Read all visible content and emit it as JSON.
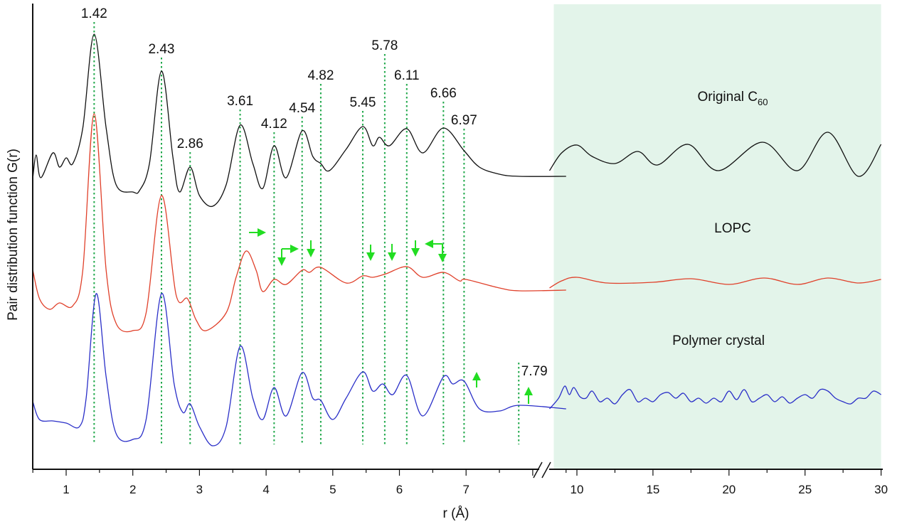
{
  "chart_data": {
    "type": "line",
    "title": "",
    "xlabel": "r (Å)",
    "ylabel": "Pair distribution function G(r)",
    "x_axis": {
      "broken": true,
      "segments": [
        {
          "range": [
            0.5,
            8.55
          ],
          "ticks": [
            1,
            2,
            3,
            4,
            5,
            6,
            7
          ]
        },
        {
          "range": [
            8.2,
            30
          ],
          "ticks": [
            10,
            15,
            20,
            25,
            30
          ]
        }
      ]
    },
    "y_ticks_shown": false,
    "grid": false,
    "shaded_region": {
      "x_range": [
        8.2,
        30
      ],
      "color": "#e3f4ea"
    },
    "peak_lines": {
      "color": "#1fa84a",
      "style": "dotted",
      "positions": [
        1.42,
        2.43,
        2.86,
        3.61,
        4.12,
        4.54,
        4.82,
        5.45,
        5.78,
        6.11,
        6.66,
        6.97,
        7.79
      ],
      "labels": [
        "1.42",
        "2.43",
        "2.86",
        "3.61",
        "4.12",
        "4.54",
        "4.82",
        "5.45",
        "5.78",
        "6.11",
        "6.66",
        "6.97",
        "7.79"
      ]
    },
    "arrows_color": "#22dd22",
    "arrows": [
      {
        "near_r": 3.9,
        "direction": "right",
        "curve": "LOPC"
      },
      {
        "near_r": 4.12,
        "direction": "down-right",
        "curve": "LOPC"
      },
      {
        "near_r": 4.65,
        "direction": "down",
        "curve": "LOPC"
      },
      {
        "near_r": 5.55,
        "direction": "down",
        "curve": "LOPC"
      },
      {
        "near_r": 5.87,
        "direction": "down",
        "curve": "LOPC"
      },
      {
        "near_r": 6.22,
        "direction": "down",
        "curve": "LOPC"
      },
      {
        "near_r": 6.66,
        "direction": "down-left",
        "curve": "LOPC"
      },
      {
        "near_r": 7.15,
        "direction": "up",
        "curve": "Polymer crystal"
      },
      {
        "near_r": 7.92,
        "direction": "up",
        "curve": "Polymer crystal"
      }
    ],
    "series": [
      {
        "name": "Original C60",
        "label_main": "Original C",
        "label_sub": "60",
        "color": "#111111",
        "x": [
          0.5,
          0.55,
          0.62,
          0.8,
          0.9,
          1.0,
          1.1,
          1.25,
          1.42,
          1.6,
          1.75,
          2.0,
          2.1,
          2.25,
          2.43,
          2.6,
          2.7,
          2.86,
          3.0,
          3.2,
          3.4,
          3.61,
          3.8,
          3.95,
          4.12,
          4.3,
          4.54,
          4.7,
          4.82,
          4.95,
          5.2,
          5.45,
          5.6,
          5.7,
          5.85,
          6.11,
          6.35,
          6.66,
          6.97,
          7.2,
          7.5,
          7.8,
          8.5,
          8.2,
          9,
          10,
          11,
          12.5,
          14,
          15.3,
          17.3,
          19.3,
          22.2,
          24.5,
          26.5,
          28.5,
          30
        ],
        "y": [
          -0.5,
          1.1,
          -0.5,
          1.25,
          0.25,
          0.9,
          0.5,
          3,
          9.6,
          3,
          -1,
          -1.5,
          -1.4,
          0.5,
          7,
          1,
          -1.5,
          0.25,
          -1.75,
          -2.5,
          -1,
          3.2,
          0.5,
          -1.25,
          1.75,
          -0.5,
          2.8,
          1,
          0.5,
          0,
          1.5,
          3.1,
          1.75,
          2.35,
          1.75,
          2.95,
          1.25,
          3,
          1.4,
          0.25,
          -0.25,
          -0.4,
          -0.4,
          0,
          1.25,
          1.8,
          1,
          0.5,
          1.35,
          0.4,
          1.85,
          0,
          2,
          0,
          2.7,
          -0.4,
          1.85
        ]
      },
      {
        "name": "LOPC",
        "label_main": "LOPC",
        "label_sub": "",
        "color": "#e0402a",
        "x": [
          0.5,
          0.6,
          0.75,
          0.9,
          1.1,
          1.25,
          1.42,
          1.6,
          1.75,
          2.0,
          2.2,
          2.43,
          2.65,
          2.82,
          2.95,
          3.1,
          3.4,
          3.55,
          3.7,
          3.85,
          3.95,
          4.12,
          4.3,
          4.54,
          4.65,
          4.82,
          5.2,
          5.45,
          5.6,
          5.8,
          6.11,
          6.35,
          6.66,
          6.9,
          7.0,
          7.5,
          7.8,
          8.5,
          8.2,
          9,
          10,
          12,
          15,
          17.5,
          20,
          22.3,
          24.5,
          26.5,
          28.5,
          30
        ],
        "y": [
          1.25,
          -0.75,
          -1.5,
          -1.05,
          -1.25,
          1.25,
          12.25,
          1.25,
          -2.5,
          -3,
          -1.75,
          6.5,
          -0.5,
          -0.75,
          -2.25,
          -3,
          -1.75,
          0.75,
          2.6,
          1.25,
          -0.25,
          0.6,
          0.25,
          1.25,
          1.1,
          1.45,
          0.35,
          0.85,
          0.75,
          1,
          1.5,
          0.75,
          1.1,
          0.5,
          0.6,
          0,
          -0.2,
          -0.15,
          0,
          0.5,
          0.75,
          0.35,
          0.4,
          0.65,
          0.25,
          0.7,
          0.25,
          0.7,
          0.35,
          0.6
        ]
      },
      {
        "name": "Polymer crystal",
        "label_main": "Polymer crystal",
        "label_sub": "",
        "color": "#2a2fc8",
        "x": [
          0.5,
          0.6,
          0.8,
          1.0,
          1.2,
          1.3,
          1.45,
          1.6,
          1.75,
          2.0,
          2.2,
          2.43,
          2.62,
          2.75,
          2.86,
          3.0,
          3.2,
          3.4,
          3.61,
          3.8,
          3.95,
          4.12,
          4.3,
          4.54,
          4.7,
          4.82,
          5.0,
          5.2,
          5.45,
          5.6,
          5.75,
          5.9,
          6.11,
          6.35,
          6.66,
          6.8,
          6.97,
          7.2,
          7.5,
          7.8,
          8.5,
          8.2,
          8.8,
          9.2,
          9.5,
          9.8,
          10.2,
          10.6,
          11,
          11.5,
          12,
          12.5,
          13,
          13.5,
          14,
          14.5,
          15,
          15.5,
          16,
          16.5,
          17,
          17.5,
          18,
          18.5,
          19,
          19.5,
          20,
          20.5,
          21,
          21.5,
          22,
          22.5,
          23,
          23.5,
          24,
          24.5,
          25,
          25.5,
          26,
          26.5,
          27,
          27.5,
          28,
          28.5,
          29,
          29.5,
          30
        ],
        "y": [
          0.25,
          -1,
          -1.1,
          -1.25,
          -1.5,
          0.5,
          7.85,
          2,
          -2,
          -2.4,
          -1,
          7.85,
          1.5,
          -0.5,
          0.1,
          -1.5,
          -2.85,
          -1.5,
          4.15,
          0.5,
          -1,
          1.25,
          -0.75,
          2.3,
          0.5,
          0.35,
          -1,
          0.5,
          2.35,
          1,
          1.5,
          0.75,
          2.1,
          -0.75,
          2,
          1.5,
          1.7,
          -0.25,
          -0.4,
          0,
          -0.25,
          -0.25,
          0.5,
          1.35,
          0.75,
          1.25,
          0.6,
          0.5,
          1,
          0.25,
          0.5,
          0.1,
          0.75,
          1.1,
          0.25,
          0.5,
          0.25,
          0.75,
          0.9,
          0.5,
          0.85,
          0.25,
          0.5,
          0.15,
          0.5,
          0.25,
          1,
          0.4,
          1.1,
          0.25,
          0.5,
          0.75,
          0.25,
          0.6,
          0.15,
          0.5,
          0.75,
          0.5,
          1.1,
          1,
          0.5,
          0.25,
          0.1,
          0.5,
          0.5,
          1,
          0.75
        ]
      }
    ]
  }
}
